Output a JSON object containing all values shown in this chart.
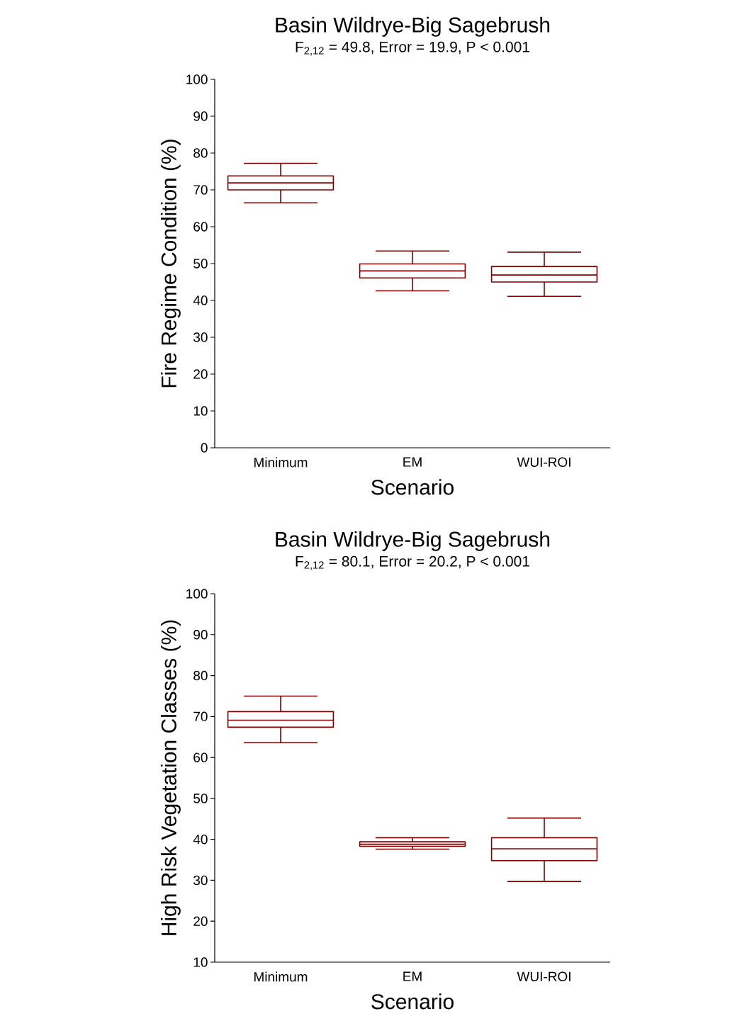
{
  "chart_data": [
    {
      "type": "box",
      "title": "Basin Wildrye-Big Sagebrush",
      "subtitle": "F$_{2,12}$ = 49.8, Error = 19.9, P < 0.001",
      "xlabel": "Scenario",
      "ylabel": "Fire Regime Condition (%)",
      "categories": [
        "Minimum",
        "EM",
        "WUI-ROI"
      ],
      "ylim": [
        0,
        100
      ],
      "yticks": [
        0,
        10,
        20,
        30,
        40,
        50,
        60,
        70,
        80,
        90,
        100
      ],
      "series": [
        {
          "color": "#800000",
          "boxes": [
            {
              "low": 66.5,
              "q1": 70.0,
              "median": 71.9,
              "q3": 73.8,
              "high": 77.2
            },
            {
              "low": 42.6,
              "q1": 46.1,
              "median": 48.0,
              "q3": 49.9,
              "high": 53.4
            },
            {
              "low": 41.1,
              "q1": 45.0,
              "median": 46.9,
              "q3": 49.2,
              "high": 53.1
            }
          ]
        }
      ]
    },
    {
      "type": "box",
      "title": "Basin Wildrye-Big Sagebrush",
      "subtitle": "F$_{2,12}$ = 80.1, Error = 20.2, P < 0.001",
      "xlabel": "Scenario",
      "ylabel": "High Risk Vegetation Classes (%)",
      "categories": [
        "Minimum",
        "EM",
        "WUI-ROI"
      ],
      "ylim": [
        10,
        100
      ],
      "yticks": [
        10,
        20,
        30,
        40,
        50,
        60,
        70,
        80,
        90,
        100
      ],
      "series": [
        {
          "color": "#800000",
          "boxes": [
            {
              "low": 63.6,
              "q1": 67.4,
              "median": 69.1,
              "q3": 71.2,
              "high": 75.0
            },
            {
              "low": 37.6,
              "q1": 38.3,
              "median": 38.8,
              "q3": 39.4,
              "high": 40.4
            },
            {
              "low": 29.7,
              "q1": 34.8,
              "median": 37.7,
              "q3": 40.4,
              "high": 45.2
            }
          ]
        }
      ]
    }
  ]
}
